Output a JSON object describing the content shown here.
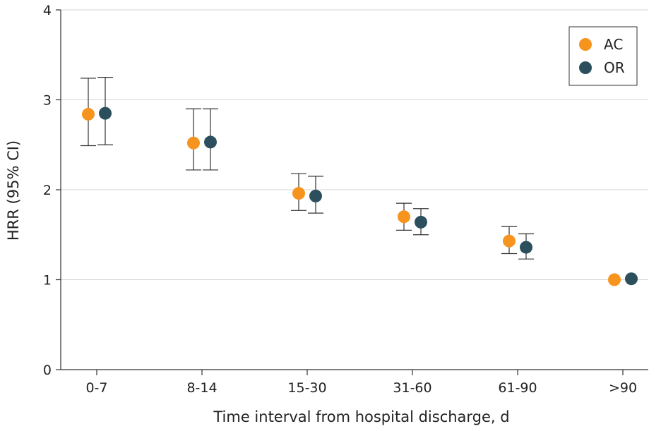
{
  "chart_data": {
    "type": "scatter",
    "xlabel": "Time interval from hospital discharge, d",
    "ylabel": "HRR (95% CI)",
    "categories": [
      "0-7",
      "8-14",
      "15-30",
      "31-60",
      "61-90",
      ">90"
    ],
    "ylim": [
      0,
      4
    ],
    "yticks": [
      "0",
      "1",
      "2",
      "3",
      "4"
    ],
    "grid": "horizontal",
    "legend_position": "top-right",
    "series": [
      {
        "name": "AC",
        "color": "#F7941D",
        "values": [
          2.84,
          2.52,
          1.96,
          1.7,
          1.43,
          1.0
        ],
        "ci_low": [
          2.49,
          2.22,
          1.77,
          1.55,
          1.29,
          null
        ],
        "ci_high": [
          3.24,
          2.9,
          2.18,
          1.85,
          1.59,
          null
        ]
      },
      {
        "name": "OR",
        "color": "#2B4F5C",
        "values": [
          2.85,
          2.53,
          1.93,
          1.64,
          1.36,
          1.01
        ],
        "ci_low": [
          2.5,
          2.22,
          1.74,
          1.5,
          1.23,
          null
        ],
        "ci_high": [
          3.25,
          2.9,
          2.15,
          1.79,
          1.51,
          null
        ]
      }
    ]
  }
}
